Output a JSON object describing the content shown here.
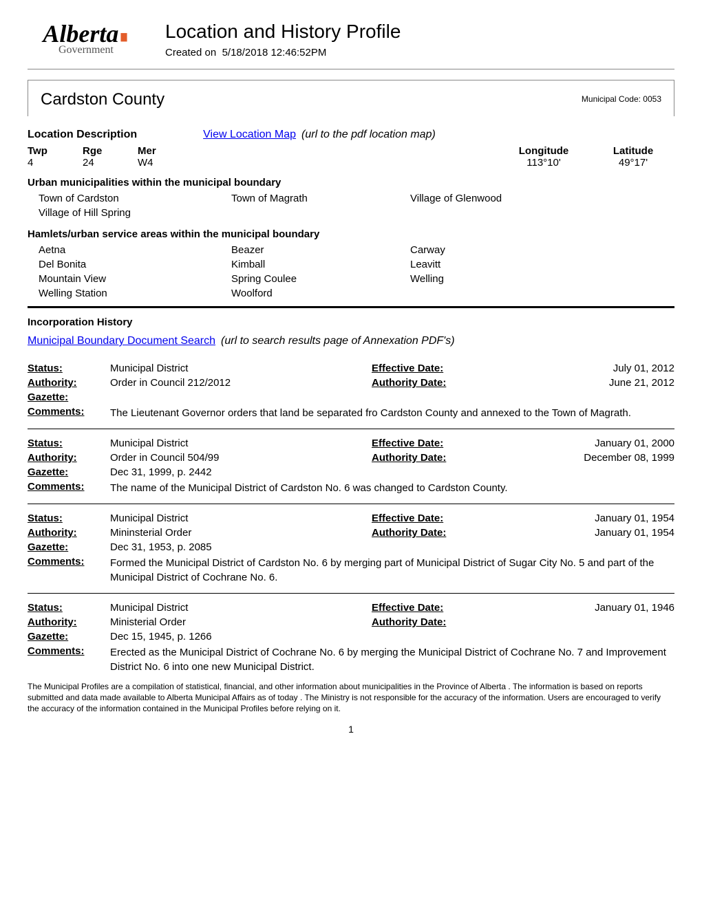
{
  "header": {
    "logo_text": "Alberta",
    "logo_sub": "Government",
    "page_title": "Location and History Profile",
    "created_label": "Created on",
    "created_value": "5/18/2018 12:46:52PM"
  },
  "profile": {
    "county_name": "Cardston County",
    "muni_code_label": "Municipal Code:",
    "muni_code": "0053"
  },
  "location": {
    "desc_label": "Location Description",
    "map_link_text": "View Location Map",
    "map_link_note": "(url to the pdf location map)",
    "headers": {
      "twp": "Twp",
      "rge": "Rge",
      "mer": "Mer",
      "lon": "Longitude",
      "lat": "Latitude"
    },
    "values": {
      "twp": "4",
      "rge": "24",
      "mer": "W4",
      "lon": "113°10'",
      "lat": "49°17'"
    }
  },
  "urban_muni": {
    "header": "Urban municipalities within the municipal boundary",
    "rows": [
      [
        "Town of Cardston",
        "Town of Magrath",
        "Village of Glenwood"
      ],
      [
        "Village of Hill Spring",
        "",
        ""
      ]
    ]
  },
  "hamlets": {
    "header": "Hamlets/urban service areas within the municipal boundary",
    "rows": [
      [
        "Aetna",
        "Beazer",
        "Carway"
      ],
      [
        "Del Bonita",
        "Kimball",
        "Leavitt"
      ],
      [
        "Mountain View",
        "Spring Coulee",
        "Welling"
      ],
      [
        "Welling Station",
        "Woolford",
        ""
      ]
    ]
  },
  "incorporation": {
    "header": "Incorporation History",
    "search_link_text": "Municipal Boundary Document Search",
    "search_link_note": "(url to search results page of Annexation PDF's)"
  },
  "labels": {
    "status": "Status:",
    "authority": "Authority:",
    "gazette": "Gazette:",
    "comments": "Comments:",
    "effective_date": "Effective Date:",
    "authority_date": "Authority Date:"
  },
  "history": [
    {
      "status": "Municipal District",
      "authority": "Order in Council  212/2012",
      "gazette": "",
      "effective_date": "July 01, 2012",
      "authority_date": "June 21, 2012",
      "comments": "The Lieutenant Governor orders that land be separated fro Cardston County and annexed to the Town of Magrath."
    },
    {
      "status": "Municipal District",
      "authority": "Order in Council 504/99",
      "gazette": "Dec 31, 1999, p. 2442",
      "effective_date": "January 01, 2000",
      "authority_date": "December 08, 1999",
      "comments": "The name of the Municipal District of Cardston No. 6 was changed to Cardston County."
    },
    {
      "status": "Municipal District",
      "authority": "Mininsterial Order",
      "gazette": "Dec 31, 1953, p. 2085",
      "effective_date": "January 01, 1954",
      "authority_date": "January 01, 1954",
      "comments": "Formed the Municipal District of Cardston No. 6 by merging part of Municipal District of Sugar City No. 5 and part of the Municipal District of Cochrane No. 6."
    },
    {
      "status": "Municipal District",
      "authority": "Ministerial Order",
      "gazette": "Dec 15, 1945, p. 1266",
      "effective_date": "January 01, 1946",
      "authority_date": "",
      "comments": "Erected as the Municipal District of Cochrane No. 6 by merging the Municipal District of Cochrane No. 7 and Improvement District No. 6 into one new Municipal District."
    }
  ],
  "disclaimer": "The Municipal Profiles are a compilation of statistical, financial,  and other information about municipalities in the Province of Alberta . The information is based on reports submitted and data made available to Alberta Municipal Affairs as of today .  The Ministry is not responsible for the accuracy of the information.  Users are encouraged to verify the accuracy of the information contained in the Municipal Profiles before relying on it.",
  "page_number": "1",
  "colors": {
    "link": "#0000ee",
    "accent": "#e35d2a",
    "text": "#000000",
    "border": "#888888"
  }
}
